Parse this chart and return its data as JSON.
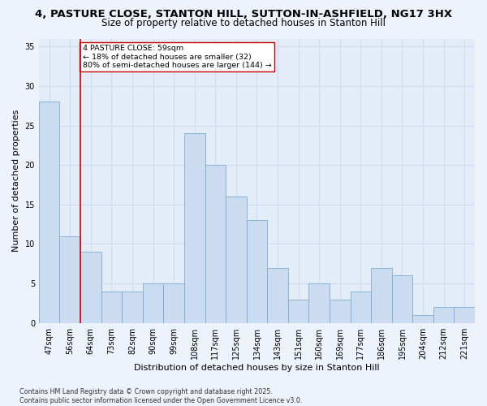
{
  "title1": "4, PASTURE CLOSE, STANTON HILL, SUTTON-IN-ASHFIELD, NG17 3HX",
  "title2": "Size of property relative to detached houses in Stanton Hill",
  "xlabel": "Distribution of detached houses by size in Stanton Hill",
  "ylabel": "Number of detached properties",
  "bar_labels": [
    "47sqm",
    "56sqm",
    "64sqm",
    "73sqm",
    "82sqm",
    "90sqm",
    "99sqm",
    "108sqm",
    "117sqm",
    "125sqm",
    "134sqm",
    "143sqm",
    "151sqm",
    "160sqm",
    "169sqm",
    "177sqm",
    "186sqm",
    "195sqm",
    "204sqm",
    "212sqm",
    "221sqm"
  ],
  "bar_values": [
    28,
    11,
    9,
    4,
    4,
    5,
    5,
    24,
    20,
    16,
    13,
    7,
    3,
    5,
    3,
    4,
    7,
    6,
    1,
    2,
    2
  ],
  "bar_color": "#ccdcf0",
  "bar_edgecolor": "#7aadd4",
  "vline_x_index": 1.5,
  "vline_color": "#cc0000",
  "annotation_text": "4 PASTURE CLOSE: 59sqm\n← 18% of detached houses are smaller (32)\n80% of semi-detached houses are larger (144) →",
  "annotation_box_edgecolor": "#cc0000",
  "annotation_box_facecolor": "#ffffff",
  "ylim": [
    0,
    36
  ],
  "yticks": [
    0,
    5,
    10,
    15,
    20,
    25,
    30,
    35
  ],
  "footer_text": "Contains HM Land Registry data © Crown copyright and database right 2025.\nContains public sector information licensed under the Open Government Licence v3.0.",
  "bg_color": "#eef2fb",
  "plot_bg_color": "#e4ecf7",
  "grid_color": "#d0daf0",
  "title1_fontsize": 9.5,
  "title2_fontsize": 8.5,
  "xlabel_fontsize": 8,
  "ylabel_fontsize": 8,
  "tick_fontsize": 7,
  "footer_fontsize": 5.8
}
